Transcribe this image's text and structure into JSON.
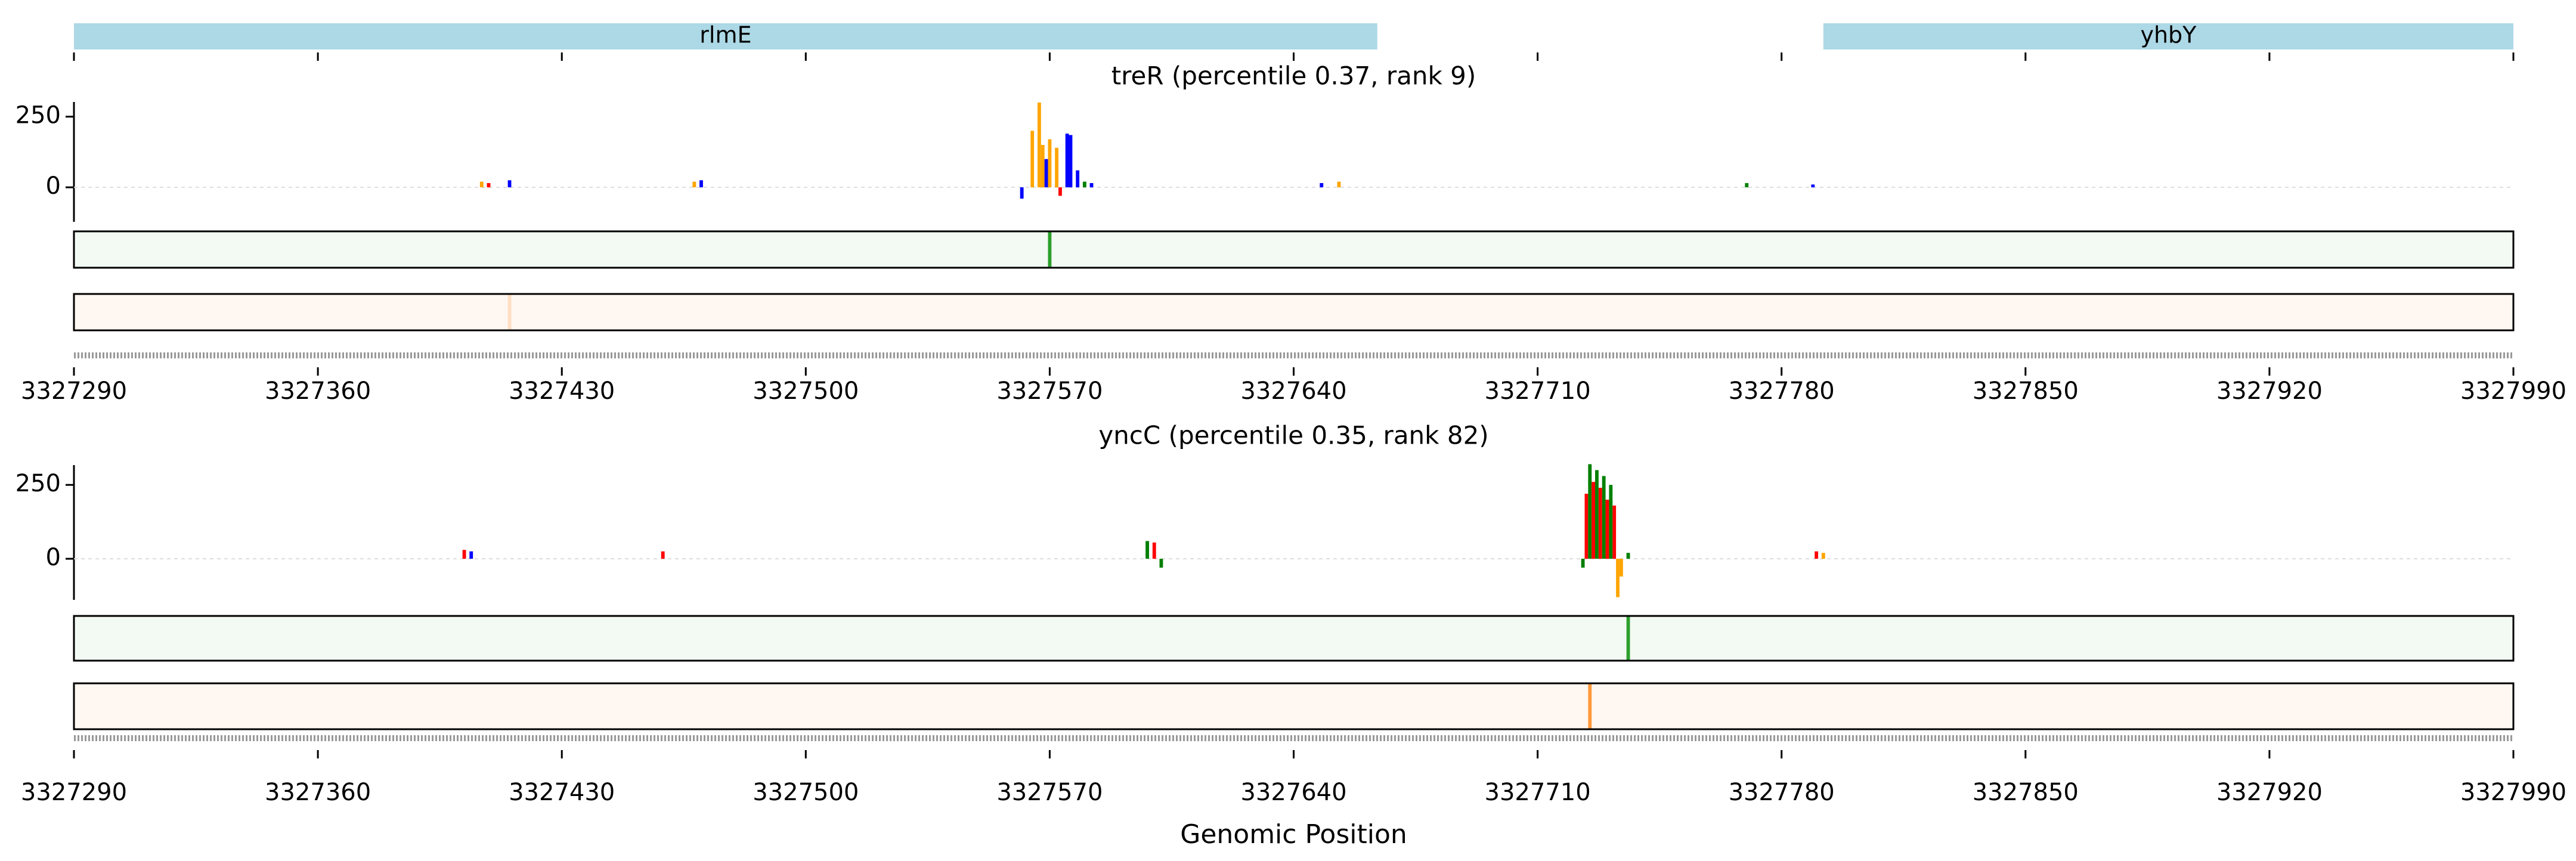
{
  "chart_data": [
    {
      "type": "gene-track",
      "xlim": [
        3327290,
        3327990
      ],
      "xticks": [
        3327290,
        3327360,
        3327430,
        3327500,
        3327570,
        3327640,
        3327710,
        3327780,
        3327850,
        3327920,
        3327990
      ],
      "color": "#add8e6",
      "genes": [
        {
          "name": "rlmE",
          "start": 3327290,
          "end": 3327664
        },
        {
          "name": "yhbY",
          "start": 3327792,
          "end": 3327990
        }
      ]
    },
    {
      "type": "attribution",
      "title": "treR (percentile 0.37, rank 9)",
      "xlim": [
        3327290,
        3327990
      ],
      "xticks": [
        3327290,
        3327360,
        3327430,
        3327500,
        3327570,
        3327640,
        3327710,
        3327780,
        3327850,
        3327920,
        3327990
      ],
      "ylim": [
        -122,
        302
      ],
      "yticks": [
        0,
        250
      ],
      "x": [
        3327407,
        3327409,
        3327415,
        3327468,
        3327470,
        3327562,
        3327565,
        3327567,
        3327568,
        3327569,
        3327570,
        3327572,
        3327573,
        3327575,
        3327576,
        3327578,
        3327580,
        3327582,
        3327648,
        3327653,
        3327770,
        3327789
      ],
      "values": [
        20,
        15,
        25,
        20,
        25,
        -40,
        200,
        300,
        150,
        100,
        170,
        140,
        -30,
        190,
        185,
        60,
        20,
        15,
        15,
        20,
        15,
        10
      ],
      "colors": [
        "#ffa500",
        "#ff0000",
        "#0000ff",
        "#ffa500",
        "#0000ff",
        "#0000ff",
        "#ffa500",
        "#ffa500",
        "#ffa500",
        "#0000ff",
        "#ffa500",
        "#ffa500",
        "#ff0000",
        "#0000ff",
        "#0000ff",
        "#0000ff",
        "#008000",
        "#0000ff",
        "#0000ff",
        "#ffa500",
        "#008000",
        "#0000ff"
      ],
      "tracks": [
        {
          "color": "#2ca02c",
          "x": [
            3327570
          ],
          "values": [
            1
          ]
        },
        {
          "color": "#ff7f0e",
          "x": [
            3327415
          ],
          "values": [
            0.2
          ]
        }
      ]
    },
    {
      "type": "attribution",
      "title": "yncC (percentile 0.35, rank 82)",
      "xlim": [
        3327290,
        3327990
      ],
      "xticks": [
        3327290,
        3327360,
        3327430,
        3327500,
        3327570,
        3327640,
        3327710,
        3327780,
        3327850,
        3327920,
        3327990
      ],
      "ylim": [
        -139,
        317
      ],
      "yticks": [
        0,
        250
      ],
      "xlabel": "Genomic Position",
      "x": [
        3327402,
        3327404,
        3327459,
        3327598,
        3327600,
        3327602,
        3327723,
        3327724,
        3327725,
        3327726,
        3327727,
        3327728,
        3327729,
        3327730,
        3327731,
        3327732,
        3327733,
        3327734,
        3327736,
        3327790,
        3327792
      ],
      "values": [
        30,
        25,
        25,
        60,
        55,
        -30,
        -30,
        220,
        320,
        260,
        300,
        240,
        280,
        200,
        250,
        180,
        -130,
        -60,
        20,
        25,
        20
      ],
      "colors": [
        "#ff0000",
        "#0000ff",
        "#ff0000",
        "#008000",
        "#ff0000",
        "#008000",
        "#008000",
        "#ff0000",
        "#008000",
        "#ff0000",
        "#008000",
        "#ff0000",
        "#008000",
        "#ff0000",
        "#008000",
        "#ff0000",
        "#ffa500",
        "#ffa500",
        "#008000",
        "#ff0000",
        "#ffa500"
      ],
      "tracks": [
        {
          "color": "#2ca02c",
          "x": [
            3327736
          ],
          "values": [
            1
          ]
        },
        {
          "color": "#ff7f0e",
          "x": [
            3327725
          ],
          "values": [
            0.8
          ]
        }
      ]
    }
  ]
}
